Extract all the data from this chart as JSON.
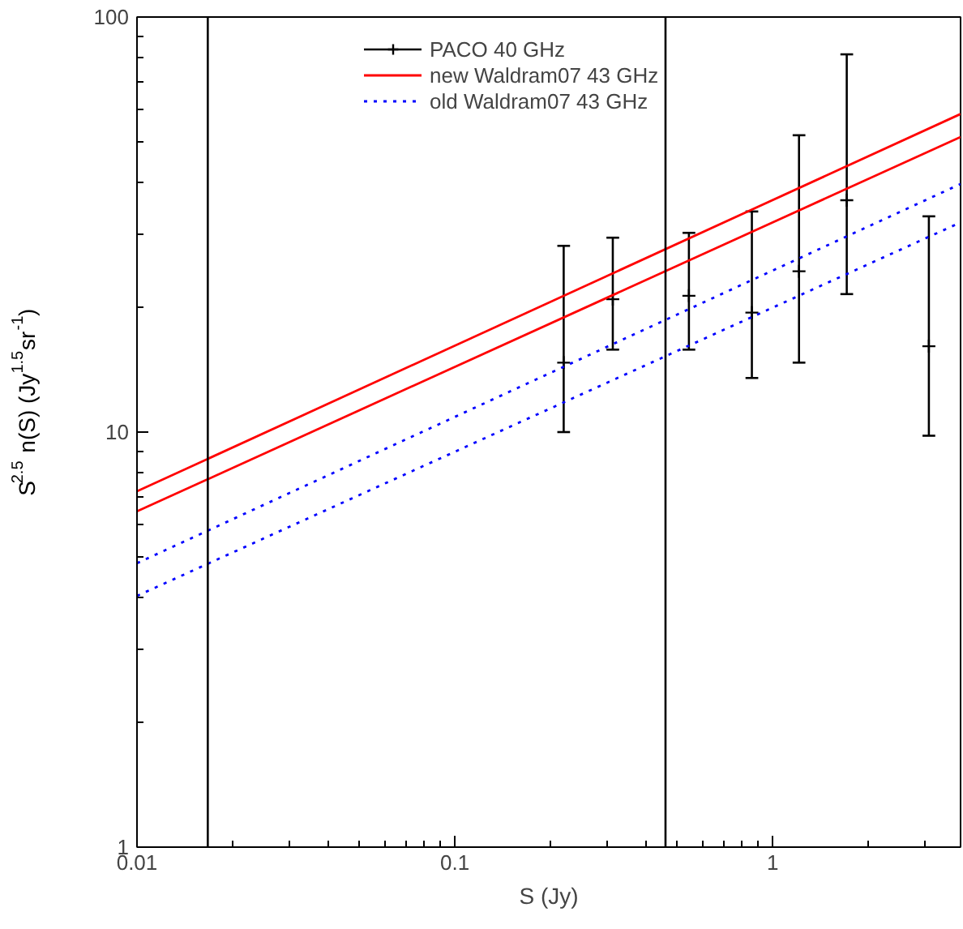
{
  "chart_data": {
    "type": "scatter",
    "xlabel": "S (Jy)",
    "ylabel": "S$^{2.5}$ n(S) (Jy$^{1.5}$sr$^{-1}$)",
    "log": "xy",
    "xlim": [
      0.01,
      3.9
    ],
    "ylim": [
      1,
      100
    ],
    "xticks": [
      0.01,
      0.1,
      1
    ],
    "yticks": [
      1,
      10,
      100
    ],
    "grid": false,
    "legend": "top right",
    "series": [
      {
        "name": "PACO 40 GHz",
        "color": "#000000",
        "marker": "cross",
        "x": [
          0.22,
          0.314,
          0.545,
          0.86,
          1.21,
          1.71,
          3.1
        ],
        "values": [
          14.7,
          20.9,
          21.3,
          19.4,
          24.4,
          36.2,
          16.1
        ],
        "errors": [
          [
            10.0,
            28.1
          ],
          [
            15.8,
            29.4
          ],
          [
            15.8,
            30.2
          ],
          [
            13.5,
            34.0
          ],
          [
            14.7,
            51.9
          ],
          [
            21.5,
            81.3
          ],
          [
            9.8,
            33.1
          ]
        ]
      },
      {
        "name": "new Waldram07 43 GHz",
        "type": "line",
        "color": "#ff0000",
        "line_style": "solid",
        "x": [
          0.01,
          3.9
        ],
        "values": [
          7.2,
          58.4
        ]
      },
      {
        "type": "line",
        "color": "#ff0000",
        "line_style": "solid",
        "x": [
          0.01,
          3.9
        ],
        "values": [
          6.44,
          51.4
        ]
      },
      {
        "name": "old Waldram07 43 GHz",
        "type": "line",
        "color": "#0000ff",
        "line_style": "dotted",
        "x": [
          0.01,
          3.9
        ],
        "values": [
          4.83,
          39.6
        ]
      },
      {
        "type": "line",
        "color": "#0000ff",
        "line_style": "dotted",
        "x": [
          0.01,
          3.9
        ],
        "values": [
          4.03,
          32.0
        ]
      }
    ],
    "ref_lines": [
      {
        "axis": "x",
        "value": 0.0167,
        "color": "#000000"
      },
      {
        "axis": "x",
        "value": 0.46,
        "color": "#000000"
      }
    ]
  }
}
